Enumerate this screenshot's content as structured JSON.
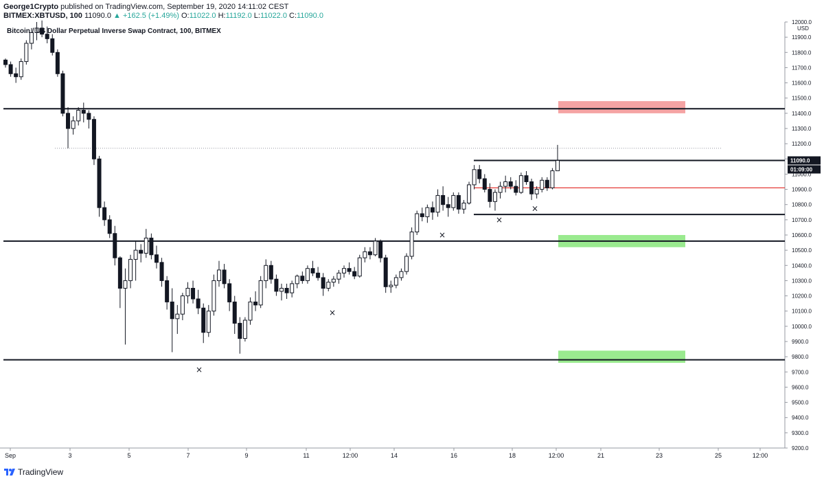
{
  "header": {
    "author": "George1Crypto",
    "published": " published on TradingView.com, September 19, 2020 14:11:02 CEST",
    "symbol": "BITMEX:XBTUSD, 100",
    "last": "11090.0",
    "change": "▲ +162.5 (+1.49%)",
    "o_label": "O:",
    "o": "11022.0",
    "h_label": "H:",
    "h": "11192.0",
    "l_label": "L:",
    "l": "11022.0",
    "c_label": "C:",
    "c": "11090.0"
  },
  "footer": {
    "brand": "TradingView"
  },
  "colors": {
    "candle": "#131722",
    "red_zone": "#f5a3a3",
    "green_zone": "#9aea8f",
    "red_line": "#e53935",
    "badge_bg": "#131722",
    "badge_text": "#ffffff"
  },
  "chart_data": {
    "type": "candlestick",
    "title": "Bitcoin / US Dollar Perpetual Inverse Swap Contract, 100, BITMEX",
    "currency": "USD",
    "ylim": [
      9200,
      12000
    ],
    "y_ticks": [
      "9200.0",
      "9300.0",
      "9400.0",
      "9500.0",
      "9600.0",
      "9700.0",
      "9800.0",
      "9900.0",
      "10000.0",
      "10100.0",
      "10200.0",
      "10300.0",
      "10400.0",
      "10500.0",
      "10600.0",
      "10700.0",
      "10800.0",
      "10900.0",
      "11000.0",
      "11100.0",
      "11200.0",
      "11300.0",
      "11400.0",
      "11500.0",
      "11600.0",
      "11700.0",
      "11800.0",
      "11900.0",
      "12000.0"
    ],
    "x_ticks": [
      "Sep",
      "3",
      "5",
      "7",
      "9",
      "11",
      "12:00",
      "14",
      "16",
      "18",
      "12:00",
      "21",
      "23",
      "25",
      "12:00"
    ],
    "last_price": "11090.0",
    "countdown": "01:09:00",
    "series": [
      [
        11750,
        11760,
        11700,
        11720
      ],
      [
        11720,
        11740,
        11640,
        11660
      ],
      [
        11660,
        11700,
        11600,
        11640
      ],
      [
        11640,
        11760,
        11620,
        11740
      ],
      [
        11740,
        11880,
        11720,
        11860
      ],
      [
        11860,
        11960,
        11820,
        11930
      ],
      [
        11930,
        12000,
        11880,
        11960
      ],
      [
        11960,
        12010,
        11900,
        11920
      ],
      [
        11920,
        11970,
        11860,
        11890
      ],
      [
        11890,
        11920,
        11780,
        11800
      ],
      [
        11800,
        11820,
        11640,
        11660
      ],
      [
        11660,
        11680,
        11380,
        11400
      ],
      [
        11400,
        11440,
        11170,
        11300
      ],
      [
        11300,
        11380,
        11260,
        11350
      ],
      [
        11350,
        11440,
        11320,
        11420
      ],
      [
        11420,
        11470,
        11340,
        11400
      ],
      [
        11400,
        11420,
        11300,
        11360
      ],
      [
        11360,
        11380,
        11060,
        11100
      ],
      [
        11100,
        11120,
        10720,
        10780
      ],
      [
        10780,
        10820,
        10660,
        10700
      ],
      [
        10700,
        10730,
        10580,
        10610
      ],
      [
        10610,
        10660,
        10400,
        10450
      ],
      [
        10450,
        10460,
        10120,
        10250
      ],
      [
        10250,
        10380,
        9880,
        10300
      ],
      [
        10300,
        10470,
        10250,
        10440
      ],
      [
        10440,
        10560,
        10300,
        10500
      ],
      [
        10500,
        10540,
        10420,
        10480
      ],
      [
        10480,
        10640,
        10450,
        10580
      ],
      [
        10580,
        10610,
        10440,
        10470
      ],
      [
        10470,
        10530,
        10380,
        10420
      ],
      [
        10420,
        10450,
        10260,
        10300
      ],
      [
        10300,
        10330,
        10110,
        10160
      ],
      [
        10160,
        10250,
        9830,
        10050
      ],
      [
        10050,
        10140,
        9950,
        10080
      ],
      [
        10080,
        10220,
        10040,
        10200
      ],
      [
        10200,
        10290,
        10150,
        10250
      ],
      [
        10250,
        10300,
        10150,
        10180
      ],
      [
        10180,
        10240,
        10080,
        10120
      ],
      [
        10120,
        10150,
        9890,
        9960
      ],
      [
        9960,
        10140,
        9930,
        10100
      ],
      [
        10100,
        10340,
        10070,
        10300
      ],
      [
        10300,
        10430,
        10260,
        10370
      ],
      [
        10370,
        10410,
        10250,
        10280
      ],
      [
        10280,
        10310,
        10100,
        10160
      ],
      [
        10160,
        10200,
        9950,
        10020
      ],
      [
        10020,
        10060,
        9820,
        9920
      ],
      [
        9920,
        10060,
        9900,
        10040
      ],
      [
        10040,
        10190,
        10010,
        10160
      ],
      [
        10160,
        10230,
        10100,
        10140
      ],
      [
        10140,
        10330,
        10120,
        10300
      ],
      [
        10300,
        10440,
        10250,
        10400
      ],
      [
        10400,
        10430,
        10280,
        10310
      ],
      [
        10310,
        10340,
        10200,
        10230
      ],
      [
        10230,
        10280,
        10170,
        10250
      ],
      [
        10250,
        10280,
        10180,
        10220
      ],
      [
        10220,
        10300,
        10190,
        10280
      ],
      [
        10280,
        10340,
        10250,
        10330
      ],
      [
        10330,
        10360,
        10280,
        10300
      ],
      [
        10300,
        10400,
        10280,
        10380
      ],
      [
        10380,
        10430,
        10330,
        10350
      ],
      [
        10350,
        10390,
        10300,
        10320
      ],
      [
        10320,
        10350,
        10200,
        10250
      ],
      [
        10250,
        10310,
        10230,
        10290
      ],
      [
        10290,
        10330,
        10260,
        10310
      ],
      [
        10310,
        10370,
        10280,
        10350
      ],
      [
        10350,
        10400,
        10320,
        10380
      ],
      [
        10380,
        10420,
        10340,
        10360
      ],
      [
        10360,
        10390,
        10310,
        10330
      ],
      [
        10330,
        10470,
        10320,
        10450
      ],
      [
        10450,
        10520,
        10420,
        10490
      ],
      [
        10490,
        10520,
        10440,
        10470
      ],
      [
        10470,
        10580,
        10460,
        10560
      ],
      [
        10560,
        10570,
        10420,
        10450
      ],
      [
        10450,
        10470,
        10220,
        10260
      ],
      [
        10260,
        10300,
        10220,
        10270
      ],
      [
        10270,
        10340,
        10250,
        10320
      ],
      [
        10320,
        10380,
        10300,
        10360
      ],
      [
        10360,
        10480,
        10340,
        10460
      ],
      [
        10460,
        10650,
        10440,
        10620
      ],
      [
        10620,
        10760,
        10600,
        10740
      ],
      [
        10740,
        10780,
        10690,
        10720
      ],
      [
        10720,
        10800,
        10680,
        10780
      ],
      [
        10780,
        10820,
        10700,
        10750
      ],
      [
        10750,
        10900,
        10720,
        10860
      ],
      [
        10860,
        10920,
        10760,
        10800
      ],
      [
        10800,
        10850,
        10720,
        10780
      ],
      [
        10780,
        10880,
        10760,
        10860
      ],
      [
        10860,
        10880,
        10740,
        10770
      ],
      [
        10770,
        10830,
        10740,
        10810
      ],
      [
        10810,
        10950,
        10800,
        10930
      ],
      [
        10930,
        11060,
        10900,
        11030
      ],
      [
        11030,
        11060,
        10940,
        10970
      ],
      [
        10970,
        11000,
        10880,
        10900
      ],
      [
        10900,
        10940,
        10780,
        10820
      ],
      [
        10820,
        10900,
        10760,
        10880
      ],
      [
        10880,
        10950,
        10840,
        10920
      ],
      [
        10920,
        10990,
        10880,
        10950
      ],
      [
        10950,
        10980,
        10900,
        10920
      ],
      [
        10920,
        10960,
        10860,
        10880
      ],
      [
        10880,
        11010,
        10870,
        10990
      ],
      [
        10990,
        11020,
        10930,
        10950
      ],
      [
        10950,
        10970,
        10830,
        10870
      ],
      [
        10870,
        10920,
        10840,
        10900
      ],
      [
        10900,
        10980,
        10880,
        10960
      ],
      [
        10960,
        10980,
        10890,
        10910
      ],
      [
        10910,
        11040,
        10900,
        11022
      ],
      [
        11022,
        11192,
        11022,
        11090
      ]
    ],
    "x_markers": [
      9715,
      10090,
      10600,
      10700,
      10775
    ],
    "horizontal_levels": [
      11430,
      10560,
      9780
    ],
    "short_levels": [
      11090,
      10735
    ],
    "red_level": 10910,
    "dotted_level": 11170,
    "zones": [
      {
        "kind": "red",
        "from": 11400,
        "to": 11480
      },
      {
        "kind": "green",
        "from": 10520,
        "to": 10600
      },
      {
        "kind": "green",
        "from": 9760,
        "to": 9840
      }
    ]
  }
}
